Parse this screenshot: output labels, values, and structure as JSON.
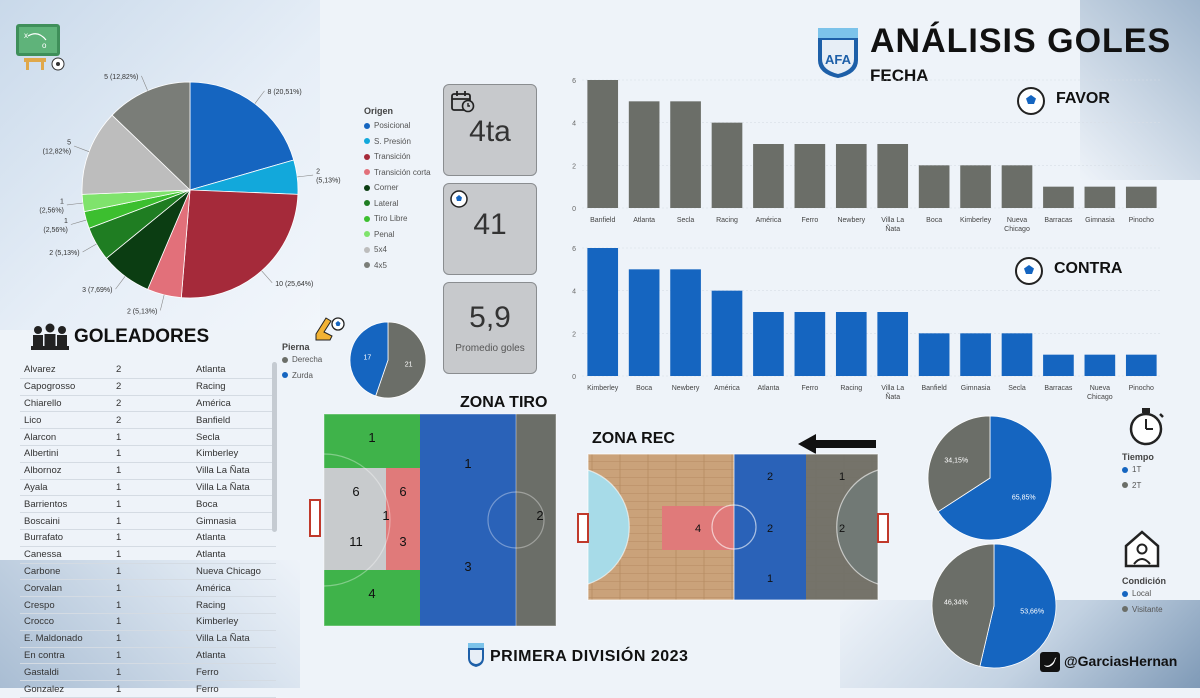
{
  "header": {
    "title": "ANÁLISIS GOLES",
    "subtitle": "FECHA",
    "footer": "PRIMERA DIVISIÓN 2023",
    "twitter": "@GarciasHernan"
  },
  "kpis": {
    "fecha": {
      "value": "4ta"
    },
    "goles": {
      "value": "41"
    },
    "promedio": {
      "value": "5,9",
      "label": "Promedio goles"
    }
  },
  "sections": {
    "favor": "FAVOR",
    "contra": "CONTRA",
    "goleadores": "GOLEADORES",
    "zona_tiro": "ZONA TIRO",
    "zona_rec": "ZONA REC"
  },
  "colors": {
    "favor_bar": "#6b6e68",
    "contra_bar": "#1565c0",
    "accent_blue": "#1565c0",
    "grey": "#6b6e68"
  },
  "chart_data": [
    {
      "id": "origen",
      "type": "pie",
      "legend_title": "Origen",
      "slices": [
        {
          "name": "Posicional",
          "value": 8,
          "label": "8 (20,51%)",
          "color": "#1565c0"
        },
        {
          "name": "S. Presión",
          "value": 2,
          "label": "2\n(5,13%)",
          "color": "#12a8db"
        },
        {
          "name": "Transición",
          "value": 10,
          "label": "10 (25,64%)",
          "color": "#a52a3a"
        },
        {
          "name": "Transición corta",
          "value": 2,
          "label": "2 (5,13%)",
          "color": "#e2707a"
        },
        {
          "name": "Corner",
          "value": 3,
          "label": "3 (7,69%)",
          "color": "#0b3d12"
        },
        {
          "name": "Lateral",
          "value": 2,
          "label": "2 (5,13%)",
          "color": "#1f7d22"
        },
        {
          "name": "Tiro Libre",
          "value": 1,
          "label": "1\n(2,56%)",
          "color": "#3cbf2f"
        },
        {
          "name": "Penal",
          "value": 1,
          "label": "1\n(2,56%)",
          "color": "#7fe36c"
        },
        {
          "name": "5x4",
          "value": 5,
          "label": "5\n(12,82%)",
          "color": "#bdbdbd"
        },
        {
          "name": "4x5",
          "value": 5,
          "label": "5 (12,82%)",
          "color": "#7a7d78"
        }
      ]
    },
    {
      "id": "favor",
      "type": "bar",
      "categories": [
        "Banfield",
        "Atlanta",
        "Secla",
        "Racing",
        "América",
        "Ferro",
        "Newbery",
        "Villa La Ñata",
        "Boca",
        "Kimberley",
        "Nueva Chicago",
        "Barracas",
        "Gimnasia",
        "Pinocho"
      ],
      "values": [
        6,
        5,
        5,
        4,
        3,
        3,
        3,
        3,
        2,
        2,
        2,
        1,
        1,
        1
      ],
      "yticks": [
        0,
        2,
        4,
        6
      ],
      "ylim": [
        0,
        6
      ]
    },
    {
      "id": "contra",
      "type": "bar",
      "categories": [
        "Kimberley",
        "Boca",
        "Newbery",
        "América",
        "Atlanta",
        "Ferro",
        "Racing",
        "Villa La Ñata",
        "Banfield",
        "Gimnasia",
        "Secla",
        "Barracas",
        "Nueva Chicago",
        "Pinocho"
      ],
      "values": [
        6,
        5,
        5,
        4,
        3,
        3,
        3,
        3,
        2,
        2,
        2,
        1,
        1,
        1
      ],
      "yticks": [
        0,
        2,
        4,
        6
      ],
      "ylim": [
        0,
        6
      ]
    },
    {
      "id": "pierna",
      "type": "pie",
      "legend_title": "Pierna",
      "slices": [
        {
          "name": "Derecha",
          "value": 21,
          "label": "21",
          "color": "#6b6e68"
        },
        {
          "name": "Zurda",
          "value": 17,
          "label": "17",
          "color": "#1565c0"
        }
      ]
    },
    {
      "id": "tiempo",
      "type": "pie",
      "legend_title": "Tiempo",
      "slices": [
        {
          "name": "1T",
          "value": 65.85,
          "label": "65,85%",
          "color": "#1565c0"
        },
        {
          "name": "2T",
          "value": 34.15,
          "label": "34,15%",
          "color": "#6b6e68"
        }
      ]
    },
    {
      "id": "condicion",
      "type": "pie",
      "legend_title": "Condición",
      "slices": [
        {
          "name": "Local",
          "value": 53.66,
          "label": "53,66%",
          "color": "#1565c0"
        },
        {
          "name": "Visitante",
          "value": 46.34,
          "label": "46,34%",
          "color": "#6b6e68"
        }
      ]
    }
  ],
  "zona_tiro": {
    "zones": [
      {
        "id": "left-top",
        "value": "1"
      },
      {
        "id": "left-mid-a",
        "value": "6"
      },
      {
        "id": "left-mid-b",
        "value": "6"
      },
      {
        "id": "left-center",
        "value": "1"
      },
      {
        "id": "left-low-a",
        "value": "11"
      },
      {
        "id": "left-low-b",
        "value": "3"
      },
      {
        "id": "left-bottom",
        "value": "4"
      },
      {
        "id": "center-top",
        "value": "1"
      },
      {
        "id": "center-bottom",
        "value": "3"
      },
      {
        "id": "right",
        "value": "2"
      }
    ]
  },
  "zona_rec": {
    "zones": [
      {
        "id": "mid",
        "value": "4"
      },
      {
        "id": "center-top",
        "value": "2"
      },
      {
        "id": "center-mid",
        "value": "2"
      },
      {
        "id": "center-bottom",
        "value": "1"
      },
      {
        "id": "right-top",
        "value": "1"
      },
      {
        "id": "right-mid",
        "value": "2"
      }
    ]
  },
  "scorers": [
    {
      "name": "Alvarez",
      "goals": "2",
      "team": "Atlanta"
    },
    {
      "name": "Capogrosso",
      "goals": "2",
      "team": "Racing"
    },
    {
      "name": "Chiarello",
      "goals": "2",
      "team": "América"
    },
    {
      "name": "Lico",
      "goals": "2",
      "team": "Banfield"
    },
    {
      "name": "Alarcon",
      "goals": "1",
      "team": "Secla"
    },
    {
      "name": "Albertini",
      "goals": "1",
      "team": "Kimberley"
    },
    {
      "name": "Albornoz",
      "goals": "1",
      "team": "Villa La Ñata"
    },
    {
      "name": "Ayala",
      "goals": "1",
      "team": "Villa La Ñata"
    },
    {
      "name": "Barrientos",
      "goals": "1",
      "team": "Boca"
    },
    {
      "name": "Boscaini",
      "goals": "1",
      "team": "Gimnasia"
    },
    {
      "name": "Burrafato",
      "goals": "1",
      "team": "Atlanta"
    },
    {
      "name": "Canessa",
      "goals": "1",
      "team": "Atlanta"
    },
    {
      "name": "Carbone",
      "goals": "1",
      "team": "Nueva Chicago"
    },
    {
      "name": "Corvalan",
      "goals": "1",
      "team": "América"
    },
    {
      "name": "Crespo",
      "goals": "1",
      "team": "Racing"
    },
    {
      "name": "Crocco",
      "goals": "1",
      "team": "Kimberley"
    },
    {
      "name": "E. Maldonado",
      "goals": "1",
      "team": "Villa La Ñata"
    },
    {
      "name": "En contra",
      "goals": "1",
      "team": "Atlanta"
    },
    {
      "name": "Gastaldi",
      "goals": "1",
      "team": "Ferro"
    },
    {
      "name": "Gonzalez",
      "goals": "1",
      "team": "Ferro"
    }
  ]
}
